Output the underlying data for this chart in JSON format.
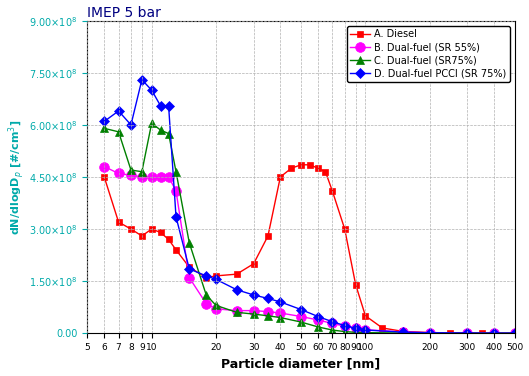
{
  "title": "IMEP 5 bar",
  "xlabel": "Particle diameter [nm]",
  "ylim": [
    0,
    900000000.0
  ],
  "yticks": [
    0,
    150000000.0,
    300000000.0,
    450000000.0,
    600000000.0,
    750000000.0,
    900000000.0
  ],
  "xlim": [
    5,
    500
  ],
  "xticks": [
    5,
    6,
    7,
    8,
    9,
    10,
    20,
    30,
    40,
    50,
    60,
    70,
    80,
    90,
    100,
    200,
    300,
    400,
    500
  ],
  "series": [
    {
      "label": "A. Diesel",
      "color": "#ff0000",
      "marker": "s",
      "markersize": 5,
      "x": [
        6,
        7,
        8,
        9,
        10,
        11,
        12,
        13,
        15,
        18,
        20,
        25,
        30,
        35,
        40,
        45,
        50,
        55,
        60,
        65,
        70,
        80,
        90,
        100,
        120,
        150,
        200,
        250,
        300,
        350,
        400,
        500
      ],
      "y": [
        450000000.0,
        320000000.0,
        300000000.0,
        280000000.0,
        300000000.0,
        290000000.0,
        270000000.0,
        240000000.0,
        190000000.0,
        160000000.0,
        165000000.0,
        170000000.0,
        200000000.0,
        280000000.0,
        450000000.0,
        475000000.0,
        485000000.0,
        485000000.0,
        475000000.0,
        465000000.0,
        410000000.0,
        300000000.0,
        140000000.0,
        50000000.0,
        15000000.0,
        5000000.0,
        1800000.0,
        800000.0,
        400000.0,
        200000.0,
        100000.0,
        50000.0
      ]
    },
    {
      "label": "B. Dual-fuel (SR 55%)",
      "color": "#ff00ff",
      "marker": "o",
      "markersize": 7,
      "x": [
        6,
        7,
        8,
        9,
        10,
        11,
        12,
        13,
        15,
        18,
        20,
        25,
        30,
        35,
        40,
        50,
        60,
        70,
        80,
        90,
        100,
        150,
        200,
        300,
        400,
        500
      ],
      "y": [
        480000000.0,
        460000000.0,
        455000000.0,
        450000000.0,
        450000000.0,
        450000000.0,
        450000000.0,
        410000000.0,
        160000000.0,
        85000000.0,
        70000000.0,
        65000000.0,
        65000000.0,
        62000000.0,
        58000000.0,
        48000000.0,
        38000000.0,
        28000000.0,
        20000000.0,
        15000000.0,
        10000000.0,
        3500000.0,
        1200000.0,
        400000.0,
        200000.0,
        100000.0
      ]
    },
    {
      "label": "C. Dual-fuel (SR75%)",
      "color": "#008000",
      "marker": "^",
      "markersize": 6,
      "x": [
        6,
        7,
        8,
        9,
        10,
        11,
        12,
        13,
        15,
        18,
        20,
        25,
        30,
        35,
        40,
        50,
        60,
        70,
        80,
        90,
        100,
        150,
        200,
        300,
        400,
        500
      ],
      "y": [
        590000000.0,
        580000000.0,
        470000000.0,
        465000000.0,
        605000000.0,
        585000000.0,
        575000000.0,
        465000000.0,
        260000000.0,
        110000000.0,
        80000000.0,
        60000000.0,
        55000000.0,
        50000000.0,
        45000000.0,
        32000000.0,
        18000000.0,
        9000000.0,
        4500000.0,
        2500000.0,
        1500000.0,
        400000.0,
        100000.0,
        50000.0,
        30000.0,
        10000.0
      ]
    },
    {
      "label": "D. Dual-fuel PCCI (SR 75%)",
      "color": "#0000ff",
      "marker": "D",
      "markersize": 5,
      "x": [
        6,
        7,
        8,
        9,
        10,
        11,
        12,
        13,
        15,
        18,
        20,
        25,
        30,
        35,
        40,
        50,
        60,
        70,
        80,
        90,
        100,
        150,
        200,
        300,
        400,
        500
      ],
      "y": [
        610000000.0,
        640000000.0,
        600000000.0,
        730000000.0,
        700000000.0,
        655000000.0,
        655000000.0,
        335000000.0,
        185000000.0,
        165000000.0,
        155000000.0,
        125000000.0,
        110000000.0,
        100000000.0,
        90000000.0,
        68000000.0,
        48000000.0,
        33000000.0,
        22000000.0,
        14000000.0,
        9000000.0,
        3000000.0,
        1200000.0,
        400000.0,
        200000.0,
        100000.0
      ]
    }
  ],
  "background_color": "#ffffff",
  "grid_color": "#b0b0b0",
  "title_color": "#000080",
  "axis_label_color": "#00aaaa",
  "tick_label_color": "#00aaaa"
}
